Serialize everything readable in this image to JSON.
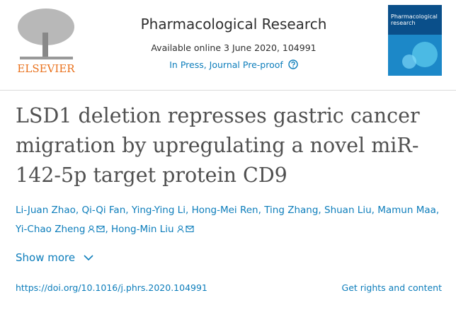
{
  "header": {
    "publisher": "ELSEVIER",
    "journal": "Pharmacological Research",
    "available": "Available online 3 June 2020, 104991",
    "status": "In Press, Journal Pre-proof",
    "cover_text": "Pharmacological research"
  },
  "article": {
    "title": "LSD1 deletion represses gastric cancer migration by upregulating a novel miR-142-5p target protein CD9",
    "authors": [
      {
        "name": "Li-Juan Zhao",
        "contact": false
      },
      {
        "name": "Qi-Qi Fan",
        "contact": false
      },
      {
        "name": "Ying-Ying Li",
        "contact": false
      },
      {
        "name": "Hong-Mei Ren",
        "contact": false
      },
      {
        "name": "Ting Zhang",
        "contact": false
      },
      {
        "name": "Shuan Liu",
        "contact": false
      },
      {
        "name": "Mamun Maa",
        "contact": false
      },
      {
        "name": "Yi-Chao Zheng",
        "contact": true
      },
      {
        "name": "Hong-Min Liu",
        "contact": true
      }
    ],
    "authors_separator": ",",
    "show_more": "Show more",
    "doi": "https://doi.org/10.1016/j.phrs.2020.104991",
    "rights": "Get rights and content"
  }
}
